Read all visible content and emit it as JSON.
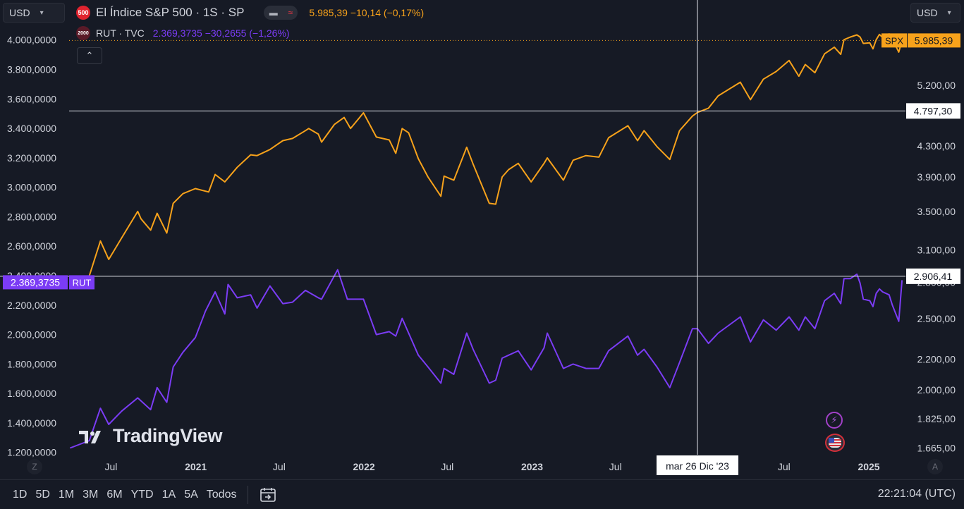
{
  "currency_left": "USD",
  "currency_right": "USD",
  "main_symbol": {
    "badge": "500",
    "title": "El Índice S&P 500 · 1S · SP",
    "price": "5.985,39",
    "change": "−10,14",
    "change_pct": "(−0,17%)",
    "color": "#f7a21b"
  },
  "compare_symbol": {
    "badge": "2000",
    "title": "RUT · TVC",
    "price": "2.369,3735",
    "change": "−30,2655",
    "change_pct": "(−1,26%)",
    "color": "#7b3cf5"
  },
  "pill_icons": [
    "minus-icon",
    "wave-icon"
  ],
  "collapse_glyph": "⌃",
  "watermark": "TradingView",
  "axis_corner_left": "Z",
  "axis_corner_right": "A",
  "bottom_bar": {
    "ranges": [
      "1D",
      "5D",
      "1M",
      "3M",
      "6M",
      "YTD",
      "1A",
      "5A",
      "Todos"
    ],
    "time": "22:21:04 (UTC)"
  },
  "chart_data": {
    "type": "line",
    "x_ticks": [
      {
        "label": "Jul",
        "date": "2020-07-01",
        "bold": false
      },
      {
        "label": "2021",
        "date": "2021-01-01",
        "bold": true
      },
      {
        "label": "Jul",
        "date": "2021-07-01",
        "bold": false
      },
      {
        "label": "2022",
        "date": "2022-01-01",
        "bold": true
      },
      {
        "label": "Jul",
        "date": "2022-07-01",
        "bold": false
      },
      {
        "label": "2023",
        "date": "2023-01-01",
        "bold": true
      },
      {
        "label": "Jul",
        "date": "2023-07-01",
        "bold": false
      },
      {
        "label": "Jul",
        "date": "2024-07-01",
        "bold": false
      },
      {
        "label": "2025",
        "date": "2025-01-01",
        "bold": true
      }
    ],
    "x_range": [
      "2020-04-01",
      "2025-03-20"
    ],
    "left_axis": {
      "range": [
        1170,
        4080
      ],
      "ticks": [
        "4.000,0000",
        "3.800,0000",
        "3.600,0000",
        "3.400,0000",
        "3.200,0000",
        "3.000,0000",
        "2.800,0000",
        "2.600,0000",
        "2.400,0000",
        "2.200,0000",
        "2.000,0000",
        "1.800,0000",
        "1.600,0000",
        "1.400,0000",
        "1.200,0000"
      ],
      "tick_values": [
        4000,
        3800,
        3600,
        3400,
        3200,
        3000,
        2800,
        2600,
        2400,
        2200,
        2000,
        1800,
        1600,
        1400,
        1200
      ]
    },
    "right_axis": {
      "scale": "log",
      "range": [
        1620,
        6220
      ],
      "ticks": [
        "5.200,00",
        "4.300,00",
        "3.900,00",
        "3.500,00",
        "3.100,00",
        "2.800,00",
        "2.500,00",
        "2.200,00",
        "2.000,00",
        "1.825,00",
        "1.665,00"
      ],
      "tick_values": [
        5200,
        4300,
        3900,
        3500,
        3100,
        2800,
        2500,
        2200,
        2000,
        1825,
        1665
      ]
    },
    "series": [
      {
        "name": "SPX",
        "axis": "right",
        "color": "#f7a21b",
        "last_label": "5.985,39",
        "points": [
          [
            "2020-05-15",
            2860
          ],
          [
            "2020-06-08",
            3190
          ],
          [
            "2020-06-26",
            3010
          ],
          [
            "2020-07-24",
            3220
          ],
          [
            "2020-08-28",
            3500
          ],
          [
            "2020-09-04",
            3420
          ],
          [
            "2020-09-25",
            3300
          ],
          [
            "2020-10-09",
            3480
          ],
          [
            "2020-10-30",
            3270
          ],
          [
            "2020-11-13",
            3590
          ],
          [
            "2020-12-04",
            3700
          ],
          [
            "2020-12-31",
            3760
          ],
          [
            "2021-01-29",
            3720
          ],
          [
            "2021-02-12",
            3930
          ],
          [
            "2021-03-05",
            3840
          ],
          [
            "2021-04-01",
            4020
          ],
          [
            "2021-04-30",
            4180
          ],
          [
            "2021-05-14",
            4170
          ],
          [
            "2021-06-11",
            4250
          ],
          [
            "2021-07-09",
            4370
          ],
          [
            "2021-07-30",
            4400
          ],
          [
            "2021-08-27",
            4510
          ],
          [
            "2021-09-03",
            4540
          ],
          [
            "2021-09-24",
            4460
          ],
          [
            "2021-10-01",
            4350
          ],
          [
            "2021-10-29",
            4600
          ],
          [
            "2021-11-19",
            4700
          ],
          [
            "2021-12-03",
            4540
          ],
          [
            "2021-12-31",
            4770
          ],
          [
            "2022-01-07",
            4680
          ],
          [
            "2022-01-28",
            4420
          ],
          [
            "2022-02-25",
            4380
          ],
          [
            "2022-03-11",
            4200
          ],
          [
            "2022-03-25",
            4540
          ],
          [
            "2022-04-08",
            4480
          ],
          [
            "2022-04-29",
            4130
          ],
          [
            "2022-05-20",
            3900
          ],
          [
            "2022-06-17",
            3670
          ],
          [
            "2022-06-24",
            3910
          ],
          [
            "2022-07-15",
            3860
          ],
          [
            "2022-08-12",
            4280
          ],
          [
            "2022-08-26",
            4060
          ],
          [
            "2022-09-30",
            3590
          ],
          [
            "2022-10-14",
            3580
          ],
          [
            "2022-10-28",
            3900
          ],
          [
            "2022-11-11",
            3990
          ],
          [
            "2022-12-02",
            4070
          ],
          [
            "2022-12-30",
            3840
          ],
          [
            "2023-01-27",
            4070
          ],
          [
            "2023-02-03",
            4140
          ],
          [
            "2023-03-10",
            3860
          ],
          [
            "2023-03-31",
            4110
          ],
          [
            "2023-04-28",
            4170
          ],
          [
            "2023-05-26",
            4150
          ],
          [
            "2023-06-16",
            4410
          ],
          [
            "2023-07-28",
            4580
          ],
          [
            "2023-08-18",
            4370
          ],
          [
            "2023-09-01",
            4510
          ],
          [
            "2023-09-29",
            4290
          ],
          [
            "2023-10-27",
            4120
          ],
          [
            "2023-11-17",
            4510
          ],
          [
            "2023-12-15",
            4720
          ],
          [
            "2023-12-26",
            4775
          ],
          [
            "2024-01-19",
            4840
          ],
          [
            "2024-02-09",
            5030
          ],
          [
            "2024-03-28",
            5250
          ],
          [
            "2024-04-19",
            4970
          ],
          [
            "2024-05-17",
            5300
          ],
          [
            "2024-06-14",
            5430
          ],
          [
            "2024-07-12",
            5620
          ],
          [
            "2024-08-02",
            5350
          ],
          [
            "2024-08-16",
            5550
          ],
          [
            "2024-09-06",
            5410
          ],
          [
            "2024-09-27",
            5740
          ],
          [
            "2024-10-18",
            5860
          ],
          [
            "2024-11-01",
            5730
          ],
          [
            "2024-11-08",
            6000
          ],
          [
            "2024-11-22",
            6050
          ],
          [
            "2024-12-06",
            6090
          ],
          [
            "2024-12-13",
            6050
          ],
          [
            "2024-12-20",
            5930
          ],
          [
            "2025-01-03",
            5940
          ],
          [
            "2025-01-10",
            5830
          ],
          [
            "2025-01-17",
            6000
          ],
          [
            "2025-01-24",
            6100
          ],
          [
            "2025-01-31",
            6040
          ],
          [
            "2025-02-14",
            6110
          ],
          [
            "2025-02-21",
            6010
          ],
          [
            "2025-03-07",
            5770
          ],
          [
            "2025-03-14",
            5985.39
          ]
        ]
      },
      {
        "name": "RUT",
        "axis": "left",
        "color": "#7b3cf5",
        "last_label": "2.369,3735",
        "points": [
          [
            "2020-04-03",
            1230
          ],
          [
            "2020-05-15",
            1280
          ],
          [
            "2020-06-08",
            1500
          ],
          [
            "2020-06-26",
            1390
          ],
          [
            "2020-07-24",
            1480
          ],
          [
            "2020-08-28",
            1570
          ],
          [
            "2020-09-25",
            1490
          ],
          [
            "2020-10-09",
            1640
          ],
          [
            "2020-10-30",
            1540
          ],
          [
            "2020-11-13",
            1780
          ],
          [
            "2020-12-04",
            1880
          ],
          [
            "2020-12-31",
            1980
          ],
          [
            "2021-01-22",
            2160
          ],
          [
            "2021-02-12",
            2290
          ],
          [
            "2021-03-05",
            2140
          ],
          [
            "2021-03-12",
            2340
          ],
          [
            "2021-04-01",
            2250
          ],
          [
            "2021-04-30",
            2270
          ],
          [
            "2021-05-14",
            2180
          ],
          [
            "2021-06-11",
            2330
          ],
          [
            "2021-07-09",
            2210
          ],
          [
            "2021-07-30",
            2220
          ],
          [
            "2021-08-27",
            2300
          ],
          [
            "2021-09-24",
            2250
          ],
          [
            "2021-10-01",
            2240
          ],
          [
            "2021-11-05",
            2440
          ],
          [
            "2021-11-26",
            2240
          ],
          [
            "2021-12-31",
            2240
          ],
          [
            "2022-01-28",
            2000
          ],
          [
            "2022-02-25",
            2020
          ],
          [
            "2022-03-11",
            1990
          ],
          [
            "2022-03-25",
            2110
          ],
          [
            "2022-04-29",
            1860
          ],
          [
            "2022-05-20",
            1780
          ],
          [
            "2022-06-17",
            1670
          ],
          [
            "2022-06-24",
            1770
          ],
          [
            "2022-07-15",
            1730
          ],
          [
            "2022-08-12",
            2010
          ],
          [
            "2022-08-26",
            1900
          ],
          [
            "2022-09-30",
            1670
          ],
          [
            "2022-10-14",
            1690
          ],
          [
            "2022-10-28",
            1840
          ],
          [
            "2022-11-11",
            1860
          ],
          [
            "2022-12-02",
            1890
          ],
          [
            "2022-12-30",
            1760
          ],
          [
            "2023-01-27",
            1910
          ],
          [
            "2023-02-03",
            2010
          ],
          [
            "2023-03-10",
            1770
          ],
          [
            "2023-03-31",
            1800
          ],
          [
            "2023-04-28",
            1770
          ],
          [
            "2023-05-26",
            1770
          ],
          [
            "2023-06-16",
            1890
          ],
          [
            "2023-07-28",
            1990
          ],
          [
            "2023-08-18",
            1860
          ],
          [
            "2023-09-01",
            1900
          ],
          [
            "2023-09-29",
            1780
          ],
          [
            "2023-10-27",
            1640
          ],
          [
            "2023-11-17",
            1810
          ],
          [
            "2023-12-15",
            2040
          ],
          [
            "2023-12-26",
            2040
          ],
          [
            "2024-01-19",
            1940
          ],
          [
            "2024-02-09",
            2010
          ],
          [
            "2024-03-28",
            2120
          ],
          [
            "2024-04-19",
            1950
          ],
          [
            "2024-05-17",
            2100
          ],
          [
            "2024-06-14",
            2030
          ],
          [
            "2024-07-12",
            2120
          ],
          [
            "2024-08-02",
            2030
          ],
          [
            "2024-08-16",
            2120
          ],
          [
            "2024-09-06",
            2040
          ],
          [
            "2024-09-27",
            2230
          ],
          [
            "2024-10-18",
            2280
          ],
          [
            "2024-11-01",
            2210
          ],
          [
            "2024-11-08",
            2380
          ],
          [
            "2024-11-22",
            2380
          ],
          [
            "2024-12-06",
            2410
          ],
          [
            "2024-12-13",
            2350
          ],
          [
            "2024-12-20",
            2240
          ],
          [
            "2025-01-03",
            2230
          ],
          [
            "2025-01-10",
            2190
          ],
          [
            "2025-01-17",
            2280
          ],
          [
            "2025-01-24",
            2310
          ],
          [
            "2025-01-31",
            2290
          ],
          [
            "2025-02-14",
            2270
          ],
          [
            "2025-02-21",
            2200
          ],
          [
            "2025-03-07",
            2090
          ],
          [
            "2025-03-14",
            2369.3735
          ]
        ]
      }
    ],
    "crosshair": {
      "date": "2023-12-26",
      "date_label": "mar 26 Dic '23",
      "left_value": 2396,
      "right_value": 4797.3,
      "right_label_top": "4.797,30",
      "right_label_bottom": "2.906,41"
    },
    "grid": false,
    "legend": "top-left"
  }
}
